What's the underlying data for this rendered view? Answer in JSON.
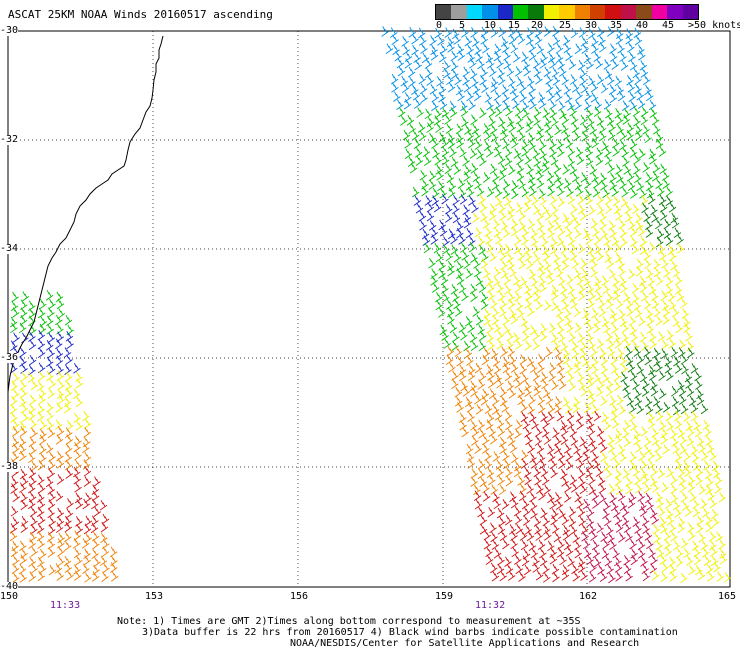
{
  "title": "ASCAT 25KM NOAA Winds 20160517 ascending",
  "colorbar": {
    "labels": [
      "0",
      "5",
      "10",
      "15",
      "20",
      "25",
      "30",
      "35",
      "40",
      "45",
      ">50 knots"
    ],
    "colors": [
      "#444444",
      "#9e9e9e",
      "#00d8ff",
      "#0090e8",
      "#1a28c8",
      "#00c000",
      "#0a7a0a",
      "#f0f000",
      "#ffcc00",
      "#f08000",
      "#d04000",
      "#d01010",
      "#c01048",
      "#8a4a1a",
      "#f000a0",
      "#8000c0",
      "#6000a0"
    ]
  },
  "lat_labels": [
    "-30",
    "-32",
    "-34",
    "-36",
    "-38",
    "-40"
  ],
  "lon_labels": [
    "150",
    "153",
    "156",
    "159",
    "162",
    "165"
  ],
  "pass_times": [
    "11:33",
    "11:32"
  ],
  "notes": [
    "Note: 1) Times are GMT 2)Times along bottom correspond to measurement at ~35S",
    "3)Data buffer is 22 hrs from 20160517 4) Black wind barbs indicate possible contamination",
    "NOAA/NESDIS/Center for Satellite Applications and Research"
  ]
}
